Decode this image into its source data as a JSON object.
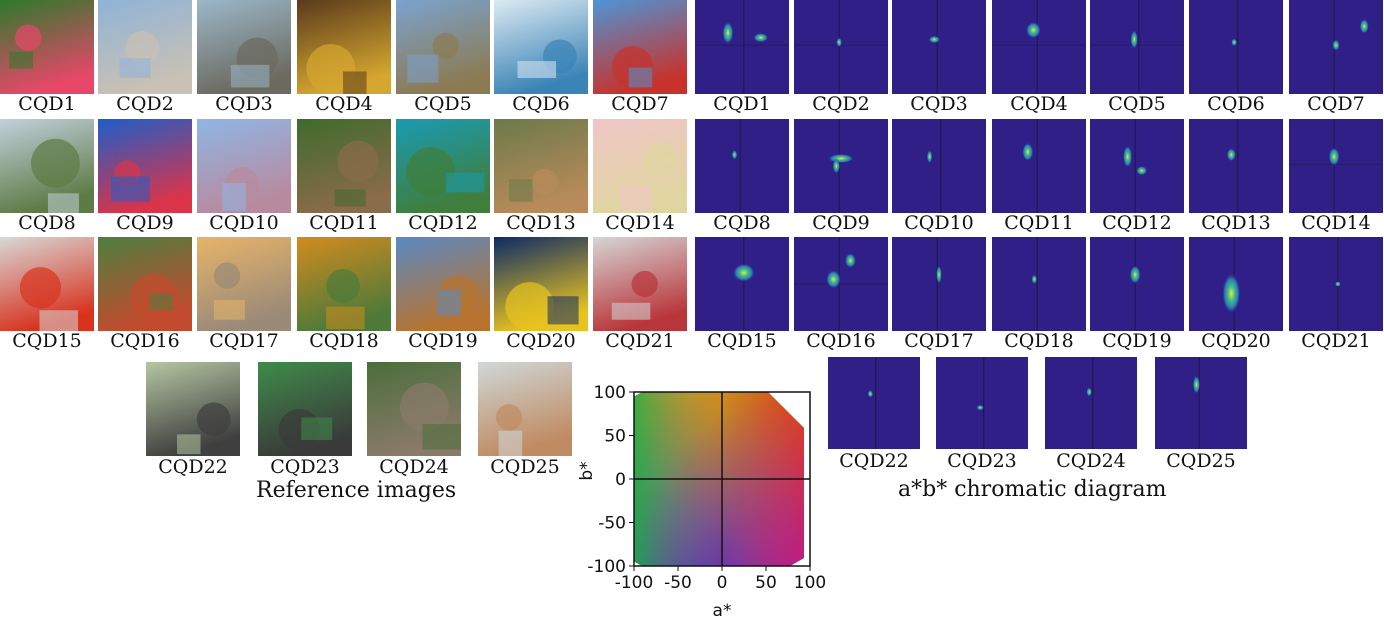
{
  "figure": {
    "reference_caption": "Reference images",
    "diagram_caption": "a*b* chromatic diagram",
    "reference_labels": [
      "CQD1",
      "CQD2",
      "CQD3",
      "CQD4",
      "CQD5",
      "CQD6",
      "CQD7",
      "CQD8",
      "CQD9",
      "CQD10",
      "CQD11",
      "CQD12",
      "CQD13",
      "CQD14",
      "CQD15",
      "CQD16",
      "CQD17",
      "CQD18",
      "CQD19",
      "CQD20",
      "CQD21",
      "CQD22",
      "CQD23",
      "CQD24",
      "CQD25"
    ],
    "diagram_labels": [
      "CQD1",
      "CQD2",
      "CQD3",
      "CQD4",
      "CQD5",
      "CQD6",
      "CQD7",
      "CQD8",
      "CQD9",
      "CQD10",
      "CQD11",
      "CQD12",
      "CQD13",
      "CQD14",
      "CQD15",
      "CQD16",
      "CQD17",
      "CQD18",
      "CQD19",
      "CQD20",
      "CQD21",
      "CQD22",
      "CQD23",
      "CQD24",
      "CQD25"
    ],
    "reference_colors": [
      [
        "#2c7a2c",
        "#e8476a"
      ],
      [
        "#8fb3d8",
        "#c9c1b4"
      ],
      [
        "#9bb7c9",
        "#6b6a5f"
      ],
      [
        "#5a3a1c",
        "#d6a72f"
      ],
      [
        "#7aa3cf",
        "#8c7a52"
      ],
      [
        "#dceaf2",
        "#3a83b6"
      ],
      [
        "#4d95d6",
        "#c8322c"
      ],
      [
        "#c2d1dc",
        "#5e7a45"
      ],
      [
        "#1d5ec9",
        "#d9344a"
      ],
      [
        "#8fb6e6",
        "#b88a9e"
      ],
      [
        "#3f6b2c",
        "#8a6b4a"
      ],
      [
        "#1a9bb3",
        "#3f7e3c"
      ],
      [
        "#6b7a4a",
        "#b98a5a"
      ],
      [
        "#f0c5c8",
        "#e0d5a0"
      ],
      [
        "#d8d8d8",
        "#d8331e"
      ],
      [
        "#4d7f3f",
        "#c44a2e"
      ],
      [
        "#e7b46a",
        "#9a8a78"
      ],
      [
        "#d28b1e",
        "#4d7a3a"
      ],
      [
        "#5a8ac4",
        "#b8732e"
      ],
      [
        "#0d2a66",
        "#e8c320"
      ],
      [
        "#d6d6d6",
        "#b8353a"
      ],
      [
        "#b5c6a3",
        "#3f3f3f"
      ],
      [
        "#3f8b4a",
        "#3a3a3a"
      ],
      [
        "#4a6e3a",
        "#8a7a6a"
      ],
      [
        "#cfd8d8",
        "#c08a62"
      ]
    ],
    "chart_data": {
      "type": "heatmap",
      "title": "",
      "xlabel": "a*",
      "ylabel": "b*",
      "xlim": [
        -100,
        100
      ],
      "ylim": [
        -100,
        100
      ],
      "xticks": [
        "-100",
        "-50",
        "0",
        "50",
        "100"
      ],
      "yticks": [
        "100",
        "50",
        "0",
        "-50",
        "-100"
      ]
    }
  }
}
